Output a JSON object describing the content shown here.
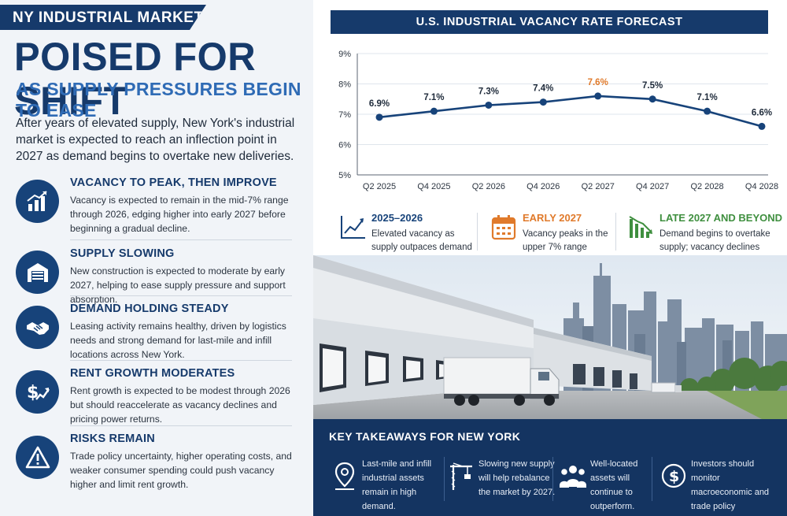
{
  "header": {
    "tag": "NY INDUSTRIAL MARKET",
    "headline": "POISED FOR SHIFT",
    "subhead": "AS SUPPLY PRESSURES BEGIN TO EASE",
    "intro": "After years of elevated supply, New York's industrial market is expected to reach an inflection point in 2027 as demand begins to overtake new deliveries."
  },
  "items": [
    {
      "title": "VACANCY TO PEAK, THEN IMPROVE",
      "text": "Vacancy is expected to remain in the mid-7% range through 2026, edging higher into early 2027 before beginning a gradual decline.",
      "icon": "bar-chart-up-icon"
    },
    {
      "title": "SUPPLY SLOWING",
      "text": "New construction is expected to moderate by early 2027, helping to ease supply pressure and support absorption.",
      "icon": "warehouse-icon"
    },
    {
      "title": "DEMAND HOLDING STEADY",
      "text": "Leasing activity remains healthy, driven by logistics needs and strong demand for last-mile and infill locations across New York.",
      "icon": "handshake-icon"
    },
    {
      "title": "RENT GROWTH MODERATES",
      "text": "Rent growth is expected to be modest through 2026 but should reaccelerate as vacancy declines and pricing power returns.",
      "icon": "dollar-growth-icon"
    },
    {
      "title": "RISKS REMAIN",
      "text": "Trade policy uncertainty, higher operating costs, and weaker consumer spending could push vacancy higher and limit rent growth.",
      "icon": "warning-icon"
    }
  ],
  "chart_title": "U.S. INDUSTRIAL VACANCY RATE FORECAST",
  "chart_data": {
    "type": "line",
    "title": "U.S. INDUSTRIAL VACANCY RATE FORECAST",
    "categories": [
      "Q2 2025",
      "Q4 2025",
      "Q2 2026",
      "Q4 2026",
      "Q2 2027",
      "Q4 2027",
      "Q2 2028",
      "Q4 2028"
    ],
    "values": [
      6.9,
      7.1,
      7.3,
      7.4,
      7.6,
      7.5,
      7.1,
      6.6
    ],
    "labels": [
      "6.9%",
      "7.1%",
      "7.3%",
      "7.4%",
      "7.6%",
      "7.5%",
      "7.1%",
      "6.6%"
    ],
    "highlight_index": 4,
    "yticks": [
      "5%",
      "6%",
      "7%",
      "8%",
      "9%"
    ],
    "ylim": [
      5,
      9
    ],
    "grid": true,
    "colors": {
      "line": "#17437a",
      "highlight": "#e07a2b",
      "grid": "#dfe5ec",
      "axis": "#5b6673"
    }
  },
  "legend": [
    {
      "title": "2025–2026",
      "text": "Elevated vacancy as supply outpaces demand",
      "color": "#17437a",
      "icon": "trend-up-chart-icon"
    },
    {
      "title": "EARLY 2027",
      "text": "Vacancy peaks in the upper 7% range",
      "color": "#e07a2b",
      "icon": "calendar-icon"
    },
    {
      "title": "LATE 2027 AND BEYOND",
      "text": "Demand begins to overtake supply; vacancy declines",
      "color": "#3f8f3f",
      "icon": "bar-chart-down-icon"
    }
  ],
  "takeaways": {
    "title": "KEY TAKEAWAYS FOR NEW YORK",
    "items": [
      {
        "text": "Last-mile and infill industrial assets remain in high demand.",
        "icon": "map-pin-icon"
      },
      {
        "text": "Slowing new supply will help rebalance the market by 2027.",
        "icon": "crane-icon"
      },
      {
        "text": "Well-located assets will continue to outperform.",
        "icon": "people-icon"
      },
      {
        "text": "Investors should monitor macroeconomic and trade policy developments.",
        "icon": "dollar-circle-icon"
      }
    ]
  }
}
